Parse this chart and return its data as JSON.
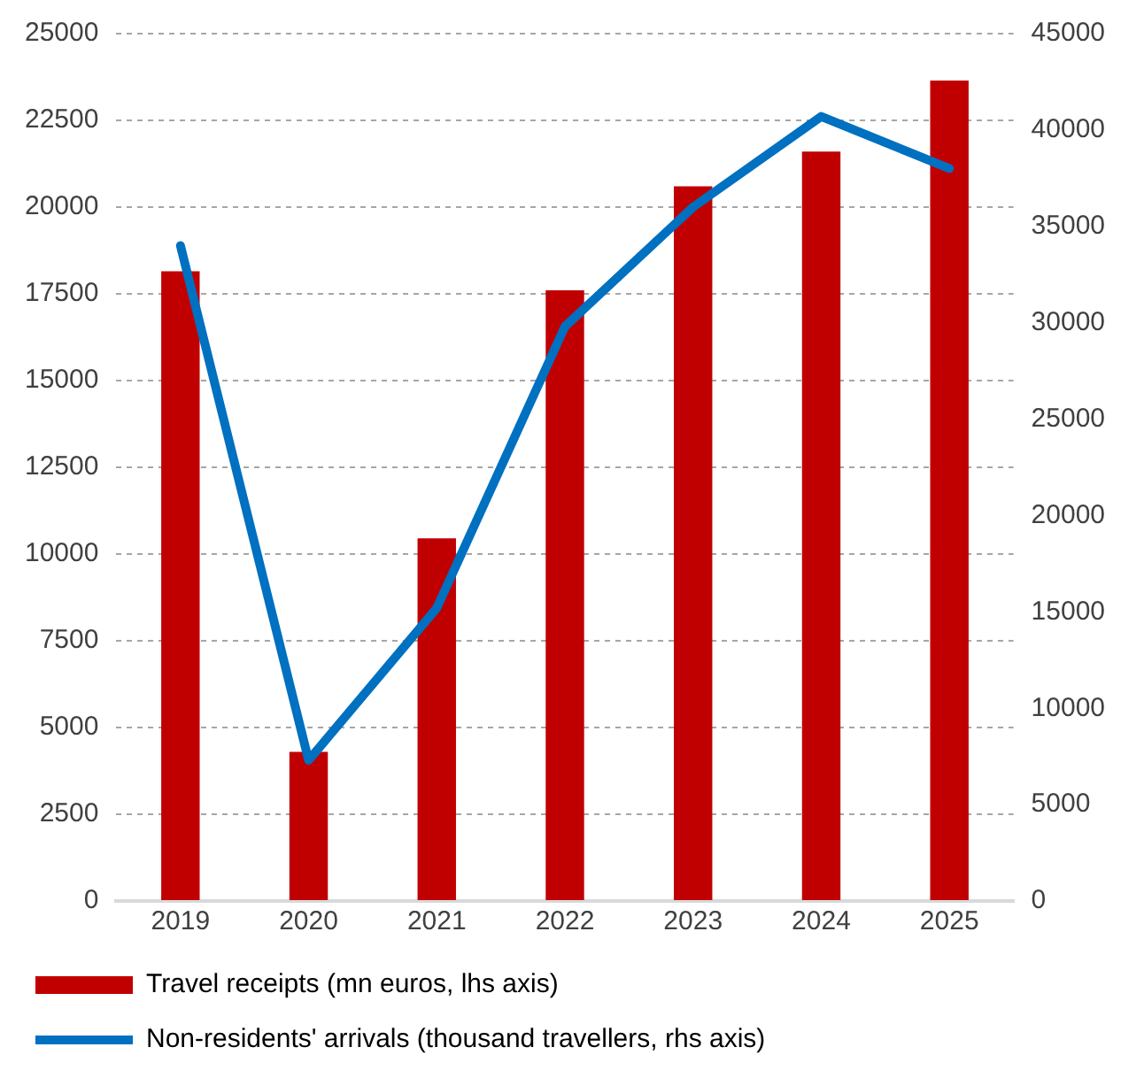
{
  "chart_data": {
    "type": "bar",
    "categories": [
      "2019",
      "2020",
      "2021",
      "2022",
      "2023",
      "2024",
      "2025"
    ],
    "series": [
      {
        "name": "Travel receipts (mn euros, lhs axis)",
        "color": "#c00000",
        "values": [
          18150,
          4300,
          10450,
          17600,
          20600,
          21600,
          23650
        ]
      },
      {
        "name": "Non-residents' arrivals (thousand travellers, rhs axis)",
        "type": "line",
        "axis": "y2",
        "color": "#0070c0",
        "values": [
          34000,
          7300,
          15200,
          29800,
          36000,
          40700,
          38000
        ]
      }
    ],
    "ylim": [
      0,
      25000
    ],
    "yticks": [
      0,
      2500,
      5000,
      7500,
      10000,
      12500,
      15000,
      17500,
      20000,
      22500,
      25000
    ],
    "y2lim": [
      0,
      45000
    ],
    "y2ticks": [
      0,
      5000,
      10000,
      15000,
      20000,
      25000,
      30000,
      35000,
      40000,
      45000
    ],
    "grid": "y",
    "legend": "bottom",
    "marker": "none",
    "line_style": "solid"
  }
}
